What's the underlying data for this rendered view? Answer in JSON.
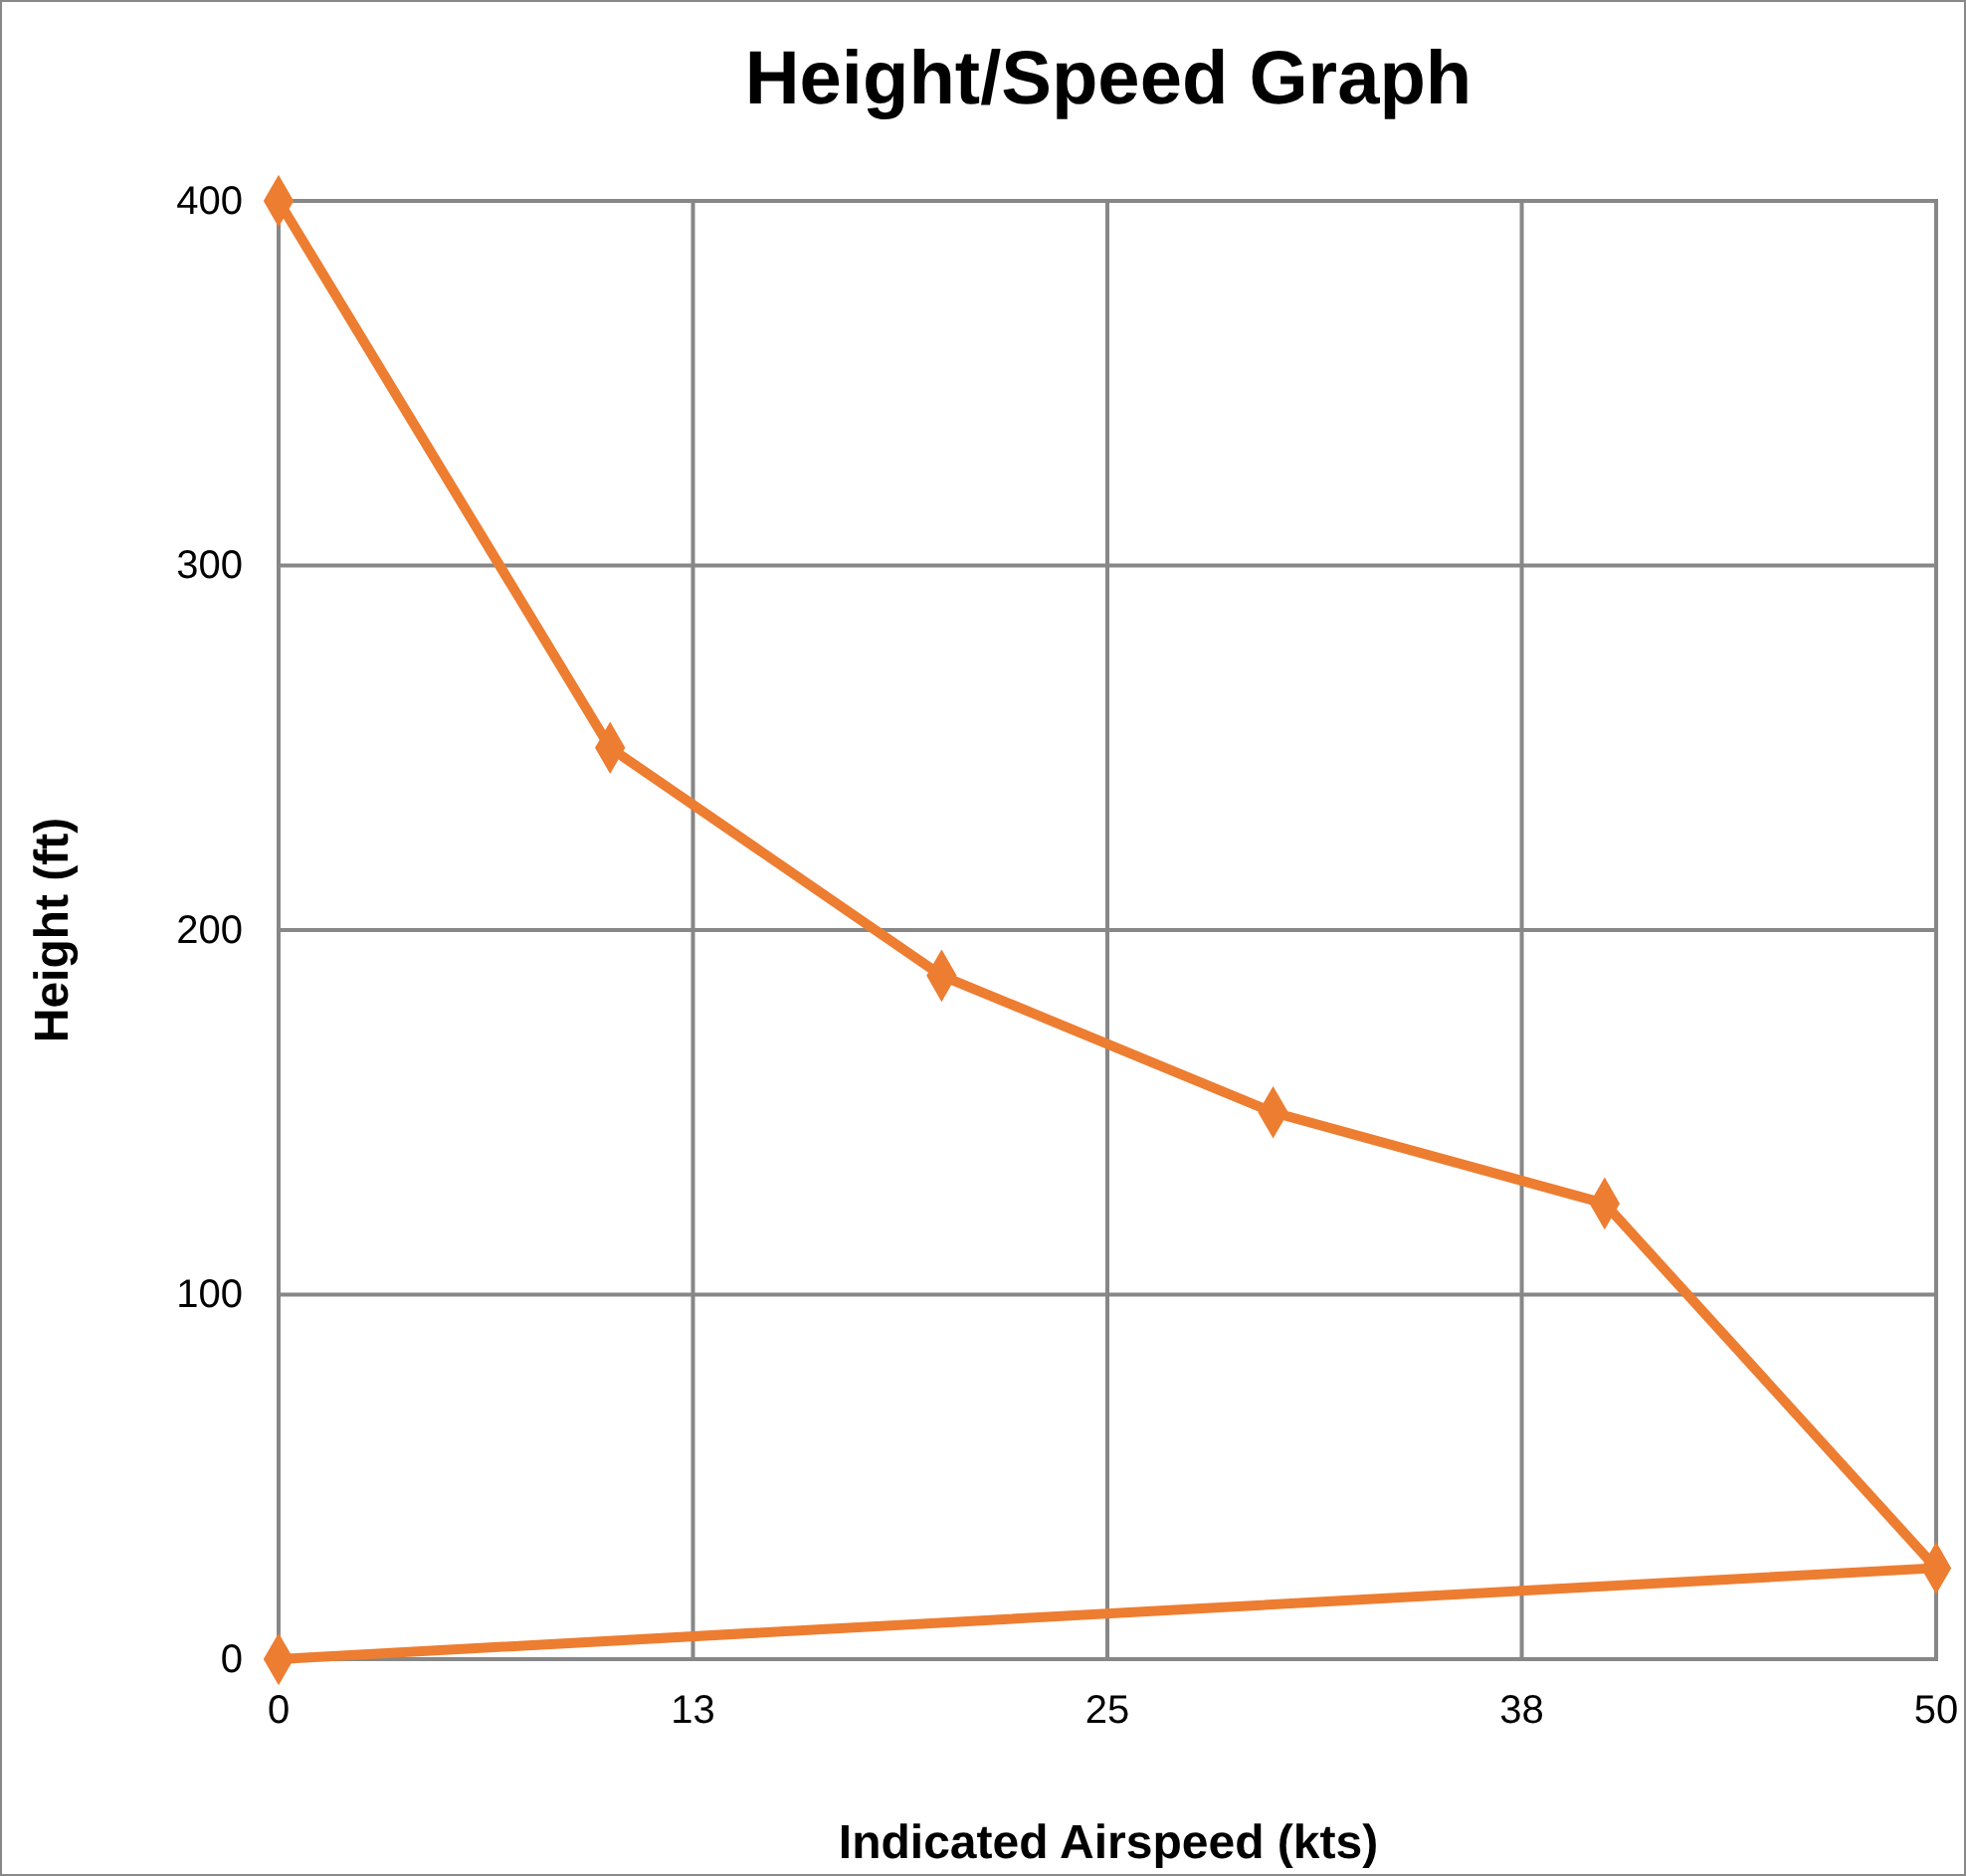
{
  "chart_data": {
    "type": "line",
    "title": "Height/Speed Graph",
    "xlabel": "Indicated Airspeed (kts)",
    "ylabel": "Height (ft)",
    "x": [
      0,
      10,
      20,
      30,
      40,
      50,
      0
    ],
    "series": [
      {
        "color": "#ed7d31",
        "values": [
          400,
          250,
          187.5,
          150,
          125,
          25,
          0
        ]
      }
    ],
    "xlim": [
      0,
      50
    ],
    "xticks": [
      0,
      {
        "value": 12.5,
        "label": "13"
      },
      25,
      {
        "value": 37.5,
        "label": "38"
      },
      50
    ],
    "ylim": [
      0,
      400
    ],
    "yticks": [
      0,
      100,
      200,
      300,
      400
    ],
    "grid": true,
    "marker": "diamond",
    "line_style": "solid"
  }
}
